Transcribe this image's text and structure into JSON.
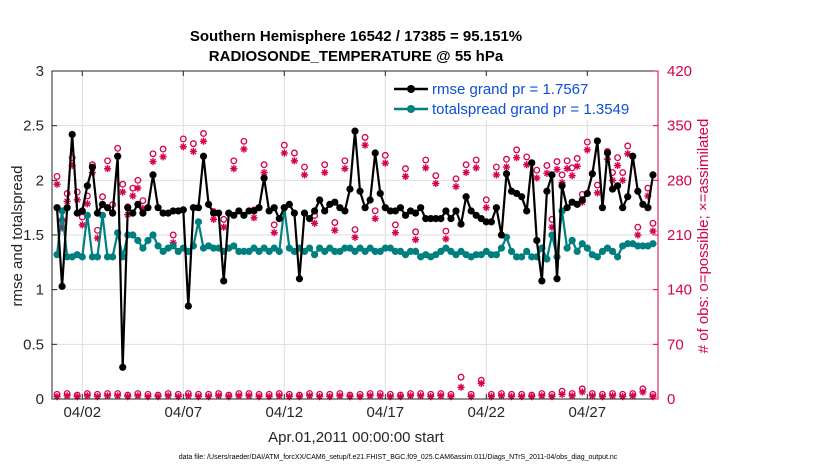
{
  "chart_data": {
    "type": "line",
    "title": "Southern Hemisphere 16542 / 17385 = 95.151%",
    "subtitle": "RADIOSONDE_TEMPERATURE @ 55 hPa",
    "xlabel": "Apr.01,2011 00:00:00 start",
    "ylabel_left": "rmse and totalspread",
    "ylabel_right": "# of obs: o=possible; ×=assimilated",
    "footer": "data file: /Users/raeder/DAI/ATM_forcXX/CAM6_setup/f.e21.FHIST_BGC.f09_025.CAM6assim.011/Diags_NTrS_2011-04/obs_diag_output.nc",
    "xlim": [
      0.5,
      30.5
    ],
    "ylim_left": [
      0,
      3
    ],
    "ylim_right": [
      0,
      420
    ],
    "x_ticks": [
      {
        "value": 2,
        "label": "04/02"
      },
      {
        "value": 7,
        "label": "04/07"
      },
      {
        "value": 12,
        "label": "04/12"
      },
      {
        "value": 17,
        "label": "04/17"
      },
      {
        "value": 22,
        "label": "04/22"
      },
      {
        "value": 27,
        "label": "04/27"
      }
    ],
    "y_ticks_left": [
      {
        "value": 0,
        "label": "0"
      },
      {
        "value": 0.5,
        "label": "0.5"
      },
      {
        "value": 1,
        "label": "1"
      },
      {
        "value": 1.5,
        "label": "1.5"
      },
      {
        "value": 2,
        "label": "2"
      },
      {
        "value": 2.5,
        "label": "2.5"
      },
      {
        "value": 3,
        "label": "3"
      }
    ],
    "y_ticks_right": [
      {
        "value": 0,
        "label": "0"
      },
      {
        "value": 70,
        "label": "70"
      },
      {
        "value": 140,
        "label": "140"
      },
      {
        "value": 210,
        "label": "210"
      },
      {
        "value": 280,
        "label": "280"
      },
      {
        "value": 350,
        "label": "350"
      },
      {
        "value": 420,
        "label": "420"
      }
    ],
    "colors": {
      "rmse": "#000000",
      "spread": "#007f7f",
      "obs": "#d6004f",
      "legend_text": "#0b4fd6"
    },
    "series": [
      {
        "name": "rmse grand pr = 1.7567",
        "key": "rmse",
        "axis": "left",
        "color": "#000000",
        "x": [
          0.75,
          1.0,
          1.25,
          1.5,
          1.75,
          2.0,
          2.25,
          2.5,
          2.75,
          3.0,
          3.25,
          3.5,
          3.75,
          4.0,
          4.25,
          4.5,
          4.75,
          5.0,
          5.25,
          5.5,
          5.75,
          6.0,
          6.25,
          6.5,
          6.75,
          7.0,
          7.25,
          7.5,
          7.75,
          8.0,
          8.25,
          8.5,
          8.75,
          9.0,
          9.25,
          9.5,
          9.75,
          10.0,
          10.25,
          10.5,
          10.75,
          11.0,
          11.25,
          11.5,
          11.75,
          12.0,
          12.25,
          12.5,
          12.75,
          13.0,
          13.25,
          13.5,
          13.75,
          14.0,
          14.25,
          14.5,
          14.75,
          15.0,
          15.25,
          15.5,
          15.75,
          16.0,
          16.25,
          16.5,
          16.75,
          17.0,
          17.25,
          17.5,
          17.75,
          18.0,
          18.25,
          18.5,
          18.75,
          19.0,
          19.25,
          19.5,
          19.75,
          20.0,
          20.25,
          20.5,
          20.75,
          21.0,
          21.25,
          21.5,
          21.75,
          22.0,
          22.25,
          22.5,
          22.75,
          23.0,
          23.25,
          23.5,
          23.75,
          24.0,
          24.25,
          24.5,
          24.75,
          25.0,
          25.25,
          25.5,
          25.75,
          26.0,
          26.25,
          26.5,
          26.75,
          27.0,
          27.25,
          27.5,
          27.75,
          28.0,
          28.25,
          28.5,
          28.75,
          29.0,
          29.25,
          29.5,
          29.75,
          30.0,
          30.25
        ],
        "values": [
          1.75,
          1.03,
          1.75,
          2.42,
          1.7,
          1.72,
          1.95,
          2.12,
          1.7,
          1.78,
          1.75,
          1.7,
          2.22,
          0.29,
          1.75,
          1.7,
          1.78,
          1.7,
          1.75,
          2.05,
          1.75,
          1.7,
          1.7,
          1.72,
          1.72,
          1.73,
          0.85,
          1.75,
          1.75,
          2.22,
          1.78,
          1.7,
          1.7,
          1.08,
          1.7,
          1.68,
          1.72,
          1.68,
          1.72,
          1.72,
          1.75,
          2.02,
          1.72,
          1.75,
          1.65,
          1.75,
          1.78,
          1.7,
          1.1,
          1.7,
          1.65,
          1.72,
          1.82,
          1.72,
          1.78,
          1.8,
          1.75,
          1.72,
          1.92,
          2.45,
          1.9,
          1.75,
          1.82,
          2.25,
          1.88,
          1.75,
          1.72,
          1.72,
          1.75,
          1.68,
          1.72,
          1.7,
          1.75,
          1.65,
          1.65,
          1.65,
          1.65,
          1.72,
          1.65,
          1.72,
          1.6,
          1.85,
          1.72,
          1.68,
          1.65,
          1.62,
          1.62,
          1.75,
          1.5,
          2.06,
          1.9,
          1.88,
          1.85,
          1.72,
          2.16,
          1.45,
          1.08,
          1.9,
          2.05,
          1.1,
          1.95,
          1.75,
          1.8,
          1.78,
          1.82,
          1.88,
          2.06,
          2.36,
          1.75,
          2.25,
          1.92,
          1.95,
          1.75,
          1.85,
          2.22,
          1.9,
          1.78,
          1.75,
          2.05
        ]
      },
      {
        "name": "totalspread grand pr = 1.3549",
        "key": "spread",
        "axis": "left",
        "color": "#007f7f",
        "x": [
          0.75,
          1.0,
          1.25,
          1.5,
          1.75,
          2.0,
          2.25,
          2.5,
          2.75,
          3.0,
          3.25,
          3.5,
          3.75,
          4.0,
          4.25,
          4.5,
          4.75,
          5.0,
          5.25,
          5.5,
          5.75,
          6.0,
          6.25,
          6.5,
          6.75,
          7.0,
          7.25,
          7.5,
          7.75,
          8.0,
          8.25,
          8.5,
          8.75,
          9.0,
          9.25,
          9.5,
          9.75,
          10.0,
          10.25,
          10.5,
          10.75,
          11.0,
          11.25,
          11.5,
          11.75,
          12.0,
          12.25,
          12.5,
          12.75,
          13.0,
          13.25,
          13.5,
          13.75,
          14.0,
          14.25,
          14.5,
          14.75,
          15.0,
          15.25,
          15.5,
          15.75,
          16.0,
          16.25,
          16.5,
          16.75,
          17.0,
          17.25,
          17.5,
          17.75,
          18.0,
          18.25,
          18.5,
          18.75,
          19.0,
          19.25,
          19.5,
          19.75,
          20.0,
          20.25,
          20.5,
          20.75,
          21.0,
          21.25,
          21.5,
          21.75,
          22.0,
          22.25,
          22.5,
          22.75,
          23.0,
          23.25,
          23.5,
          23.75,
          24.0,
          24.25,
          24.5,
          24.75,
          25.0,
          25.25,
          25.5,
          25.75,
          26.0,
          26.25,
          26.5,
          26.75,
          27.0,
          27.25,
          27.5,
          27.75,
          28.0,
          28.25,
          28.5,
          28.75,
          29.0,
          29.25,
          29.5,
          29.75,
          30.0,
          30.25
        ],
        "values": [
          1.32,
          1.72,
          1.3,
          1.3,
          1.32,
          1.3,
          1.68,
          1.3,
          1.3,
          1.68,
          1.3,
          1.3,
          1.52,
          1.3,
          1.5,
          1.5,
          1.45,
          1.38,
          1.45,
          1.5,
          1.4,
          1.35,
          1.38,
          1.4,
          1.35,
          1.38,
          1.35,
          1.4,
          1.62,
          1.38,
          1.4,
          1.38,
          1.38,
          1.35,
          1.38,
          1.4,
          1.35,
          1.35,
          1.35,
          1.38,
          1.35,
          1.38,
          1.35,
          1.38,
          1.35,
          1.75,
          1.38,
          1.35,
          1.38,
          1.35,
          1.38,
          1.32,
          1.38,
          1.35,
          1.38,
          1.35,
          1.35,
          1.38,
          1.38,
          1.35,
          1.38,
          1.35,
          1.38,
          1.35,
          1.35,
          1.38,
          1.38,
          1.35,
          1.35,
          1.32,
          1.35,
          1.35,
          1.3,
          1.32,
          1.3,
          1.32,
          1.35,
          1.38,
          1.35,
          1.32,
          1.35,
          1.32,
          1.3,
          1.32,
          1.32,
          1.35,
          1.32,
          1.32,
          1.38,
          1.48,
          1.35,
          1.3,
          1.3,
          1.35,
          1.3,
          1.3,
          1.38,
          1.28,
          1.5,
          1.3,
          1.72,
          1.38,
          1.45,
          1.35,
          1.42,
          1.38,
          1.32,
          1.3,
          1.35,
          1.38,
          1.35,
          1.3,
          1.4,
          1.42,
          1.42,
          1.4,
          1.4,
          1.4,
          1.42
        ]
      },
      {
        "name": "possible",
        "key": "possible",
        "axis": "right",
        "color": "#d6004f",
        "marker": "o",
        "x": [
          0.75,
          1.0,
          1.25,
          1.5,
          1.75,
          2.0,
          2.25,
          2.5,
          2.75,
          3.0,
          3.25,
          3.5,
          3.75,
          4.0,
          4.25,
          4.5,
          4.75,
          5.0,
          5.5,
          6.0,
          6.5,
          7.0,
          7.5,
          8.0,
          8.5,
          9.0,
          9.5,
          10.0,
          10.5,
          11.0,
          11.5,
          12.0,
          12.5,
          13.0,
          13.5,
          14.0,
          14.5,
          15.0,
          15.5,
          16.0,
          16.5,
          17.0,
          17.5,
          18.0,
          18.5,
          19.0,
          19.5,
          20.0,
          20.5,
          21.0,
          21.5,
          22.0,
          22.5,
          23.0,
          23.5,
          24.0,
          24.5,
          25.0,
          25.25,
          25.5,
          25.75,
          26.0,
          26.25,
          26.5,
          26.75,
          27.0,
          27.5,
          28.0,
          28.25,
          28.5,
          28.75,
          29.0,
          29.5,
          30.0,
          30.25
        ],
        "values": [
          285,
          229,
          263,
          309,
          265,
          233,
          260,
          300,
          216,
          259,
          305,
          249,
          321,
          275,
          246,
          270,
          280,
          254,
          314,
          320,
          210,
          333,
          327,
          340,
          240,
          230,
          305,
          330,
          242,
          300,
          223,
          325,
          315,
          297,
          235,
          300,
          226,
          305,
          217,
          335,
          241,
          312,
          223,
          295,
          214,
          306,
          286,
          215,
          282,
          300,
          306,
          255,
          297,
          307,
          319,
          310,
          293,
          299,
          230,
          304,
          287,
          305,
          296,
          308,
          262,
          329,
          274,
          317,
          290,
          309,
          290,
          324,
          220,
          270,
          225
        ]
      },
      {
        "name": "assimilated",
        "key": "assimilated",
        "axis": "right",
        "color": "#d6004f",
        "marker": "*",
        "x": [
          0.75,
          1.0,
          1.25,
          1.5,
          1.75,
          2.0,
          2.25,
          2.5,
          2.75,
          3.0,
          3.25,
          3.5,
          3.75,
          4.0,
          4.25,
          4.5,
          4.75,
          5.0,
          5.5,
          6.0,
          6.5,
          7.0,
          7.5,
          8.0,
          8.5,
          9.0,
          9.5,
          10.0,
          10.5,
          11.0,
          11.5,
          12.0,
          12.5,
          13.0,
          13.5,
          14.0,
          14.5,
          15.0,
          15.5,
          16.0,
          16.5,
          17.0,
          17.5,
          18.0,
          18.5,
          19.0,
          19.5,
          20.0,
          20.5,
          21.0,
          21.5,
          22.0,
          22.5,
          23.0,
          23.5,
          24.0,
          24.5,
          25.0,
          25.25,
          25.5,
          25.75,
          26.0,
          26.25,
          26.5,
          26.75,
          27.0,
          27.5,
          28.0,
          28.25,
          28.5,
          28.75,
          29.0,
          29.5,
          30.0,
          30.25
        ],
        "values": [
          275,
          219,
          253,
          299,
          255,
          223,
          250,
          290,
          206,
          249,
          295,
          239,
          311,
          265,
          236,
          260,
          270,
          244,
          304,
          310,
          200,
          323,
          317,
          330,
          230,
          220,
          295,
          320,
          232,
          290,
          213,
          315,
          305,
          287,
          225,
          290,
          216,
          295,
          207,
          325,
          231,
          302,
          213,
          285,
          204,
          296,
          276,
          205,
          272,
          290,
          296,
          245,
          287,
          297,
          309,
          300,
          283,
          289,
          220,
          294,
          277,
          295,
          286,
          298,
          252,
          319,
          264,
          307,
          280,
          299,
          280,
          314,
          210,
          260,
          215
        ]
      },
      {
        "name": "possible (bottom)",
        "key": "possible_low",
        "axis": "right",
        "color": "#d6004f",
        "marker": "o",
        "x": [
          0.75,
          1.25,
          1.75,
          2.25,
          2.75,
          3.25,
          3.75,
          4.25,
          4.75,
          5.25,
          5.75,
          6.25,
          6.75,
          7.25,
          7.75,
          8.25,
          8.75,
          9.25,
          9.75,
          10.25,
          10.75,
          11.25,
          11.75,
          12.25,
          12.75,
          13.25,
          13.75,
          14.25,
          14.75,
          15.25,
          15.75,
          16.25,
          16.75,
          17.25,
          17.75,
          18.25,
          18.75,
          19.25,
          19.75,
          20.25,
          20.75,
          21.25,
          21.75,
          22.25,
          22.75,
          23.25,
          23.75,
          24.25,
          24.75,
          25.25,
          25.75,
          26.25,
          26.75,
          27.25,
          27.75,
          28.25,
          28.75,
          29.25,
          29.75,
          30.25
        ],
        "values": [
          6,
          7,
          5,
          7,
          6,
          7,
          7,
          5,
          7,
          6,
          5,
          7,
          6,
          7,
          6,
          6,
          7,
          5,
          7,
          7,
          6,
          6,
          7,
          6,
          5,
          7,
          6,
          6,
          7,
          5,
          6,
          7,
          7,
          6,
          5,
          7,
          7,
          6,
          7,
          6,
          28,
          6,
          24,
          6,
          7,
          6,
          6,
          5,
          7,
          6,
          10,
          7,
          13,
          7,
          6,
          7,
          6,
          7,
          13,
          6
        ]
      },
      {
        "name": "assimilated (bottom)",
        "key": "assimilated_low",
        "axis": "right",
        "color": "#d6004f",
        "marker": "*",
        "x": [
          0.75,
          1.25,
          1.75,
          2.25,
          2.75,
          3.25,
          3.75,
          4.25,
          4.75,
          5.25,
          5.75,
          6.25,
          6.75,
          7.25,
          7.75,
          8.25,
          8.75,
          9.25,
          9.75,
          10.25,
          10.75,
          11.25,
          11.75,
          12.25,
          12.75,
          13.25,
          13.75,
          14.25,
          14.75,
          15.25,
          15.75,
          16.25,
          16.75,
          17.25,
          17.75,
          18.25,
          18.75,
          19.25,
          19.75,
          20.25,
          20.75,
          21.25,
          21.75,
          22.25,
          22.75,
          23.25,
          23.75,
          24.25,
          24.75,
          25.25,
          25.75,
          26.25,
          26.75,
          27.25,
          27.75,
          28.25,
          28.75,
          29.25,
          29.75,
          30.25
        ],
        "values": [
          3,
          4,
          3,
          4,
          3,
          4,
          4,
          3,
          4,
          3,
          3,
          4,
          3,
          4,
          3,
          3,
          4,
          3,
          4,
          4,
          3,
          3,
          4,
          3,
          3,
          4,
          3,
          3,
          4,
          3,
          3,
          4,
          4,
          3,
          3,
          4,
          4,
          3,
          4,
          3,
          15,
          3,
          20,
          3,
          4,
          3,
          3,
          3,
          4,
          3,
          6,
          4,
          9,
          4,
          3,
          4,
          3,
          4,
          9,
          3
        ]
      }
    ],
    "legend": {
      "placement": "top-right",
      "entries": [
        {
          "key": "rmse",
          "label": "rmse grand pr = 1.7567"
        },
        {
          "key": "spread",
          "label": "totalspread grand pr = 1.3549"
        }
      ]
    }
  }
}
